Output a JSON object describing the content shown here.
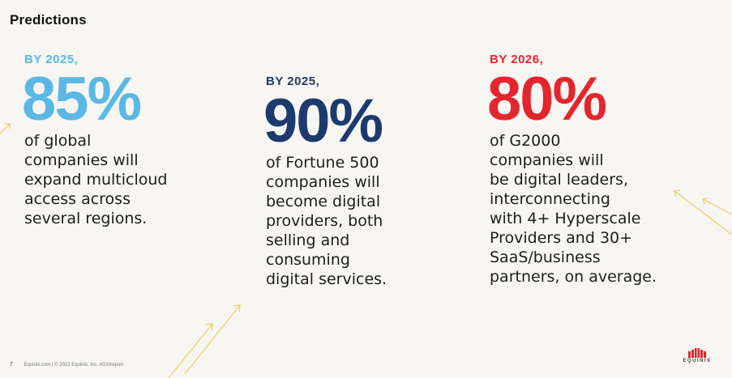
{
  "slide": {
    "title": "Predictions"
  },
  "predictions": [
    {
      "year_label": "BY 2025,",
      "percent": "85%",
      "description": "of global\ncompanies will\nexpand multicloud\naccess across\nseveral regions.",
      "color": "#5bb8e6"
    },
    {
      "year_label": "BY 2025,",
      "percent": "90%",
      "description": "of Fortune 500\ncompanies will\nbecome digital\nproviders, both\nselling and\nconsuming\ndigital services.",
      "color": "#1c3a6e"
    },
    {
      "year_label": "BY 2026,",
      "percent": "80%",
      "description": "of G2000\ncompanies will\nbe digital leaders,\ninterconnecting\nwith 4+ Hyperscale\nProviders and 30+\nSaaS/business\npartners, on average.",
      "color": "#e3262d"
    }
  ],
  "footer": {
    "page_number": "7",
    "text": "Equinix.com   |   © 2022 Equinix, Inc.    #GXIreport"
  },
  "logo": {
    "text": "EQUINIX",
    "color": "#e3262d"
  },
  "decoration": {
    "arrow_color": "#f0cd6a"
  }
}
